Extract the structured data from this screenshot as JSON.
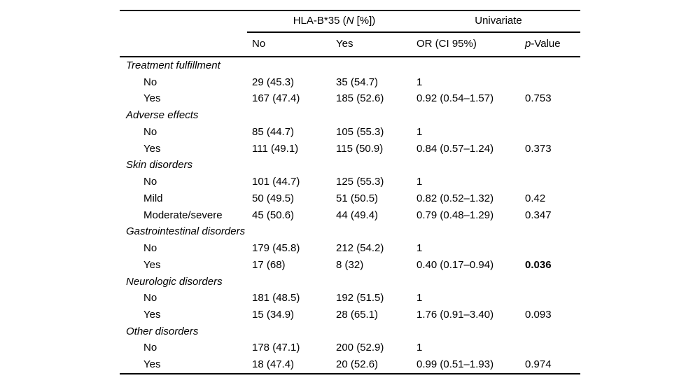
{
  "header": {
    "group_hla": {
      "prefix": "HLA-B*35 (",
      "italic": "N",
      "suffix": " [%])"
    },
    "group_univariate": "Univariate",
    "col_no": "No",
    "col_yes": "Yes",
    "col_or": "OR (CI 95%)",
    "col_p": {
      "italic": "p",
      "suffix": "-Value"
    }
  },
  "sections": [
    {
      "label": "Treatment fulfillment",
      "rows": [
        {
          "label": "No",
          "no": "29 (45.3)",
          "yes": "35 (54.7)",
          "or": "1",
          "p": ""
        },
        {
          "label": "Yes",
          "no": "167 (47.4)",
          "yes": "185 (52.6)",
          "or": "0.92 (0.54–1.57)",
          "p": "0.753"
        }
      ]
    },
    {
      "label": "Adverse effects",
      "rows": [
        {
          "label": "No",
          "no": "85 (44.7)",
          "yes": "105 (55.3)",
          "or": "1",
          "p": ""
        },
        {
          "label": "Yes",
          "no": "111 (49.1)",
          "yes": "115 (50.9)",
          "or": "0.84 (0.57–1.24)",
          "p": "0.373"
        }
      ]
    },
    {
      "label": "Skin disorders",
      "rows": [
        {
          "label": "No",
          "no": "101 (44.7)",
          "yes": "125 (55.3)",
          "or": "1",
          "p": ""
        },
        {
          "label": "Mild",
          "no": "50 (49.5)",
          "yes": "51 (50.5)",
          "or": "0.82 (0.52–1.32)",
          "p": "0.42"
        },
        {
          "label": "Moderate/severe",
          "no": "45 (50.6)",
          "yes": "44 (49.4)",
          "or": "0.79 (0.48–1.29)",
          "p": "0.347"
        }
      ]
    },
    {
      "label": "Gastrointestinal disorders",
      "rows": [
        {
          "label": "No",
          "no": "179 (45.8)",
          "yes": "212 (54.2)",
          "or": "1",
          "p": ""
        },
        {
          "label": "Yes",
          "no": "17 (68)",
          "yes": "8 (32)",
          "or": "0.40 (0.17–0.94)",
          "p": "0.036"
        }
      ]
    },
    {
      "label": "Neurologic disorders",
      "rows": [
        {
          "label": "No",
          "no": "181 (48.5)",
          "yes": "192 (51.5)",
          "or": "1",
          "p": ""
        },
        {
          "label": "Yes",
          "no": "15 (34.9)",
          "yes": "28 (65.1)",
          "or": "1.76 (0.91–3.40)",
          "p": "0.093"
        }
      ]
    },
    {
      "label": "Other disorders",
      "rows": [
        {
          "label": "No",
          "no": "178 (47.1)",
          "yes": "200 (52.9)",
          "or": "1",
          "p": ""
        },
        {
          "label": "Yes",
          "no": "18 (47.4)",
          "yes": "20 (52.6)",
          "or": "0.99 (0.51–1.93)",
          "p": "0.974"
        }
      ]
    }
  ],
  "colors": {
    "text": "#000000",
    "rule": "#000000",
    "background": "#ffffff"
  }
}
